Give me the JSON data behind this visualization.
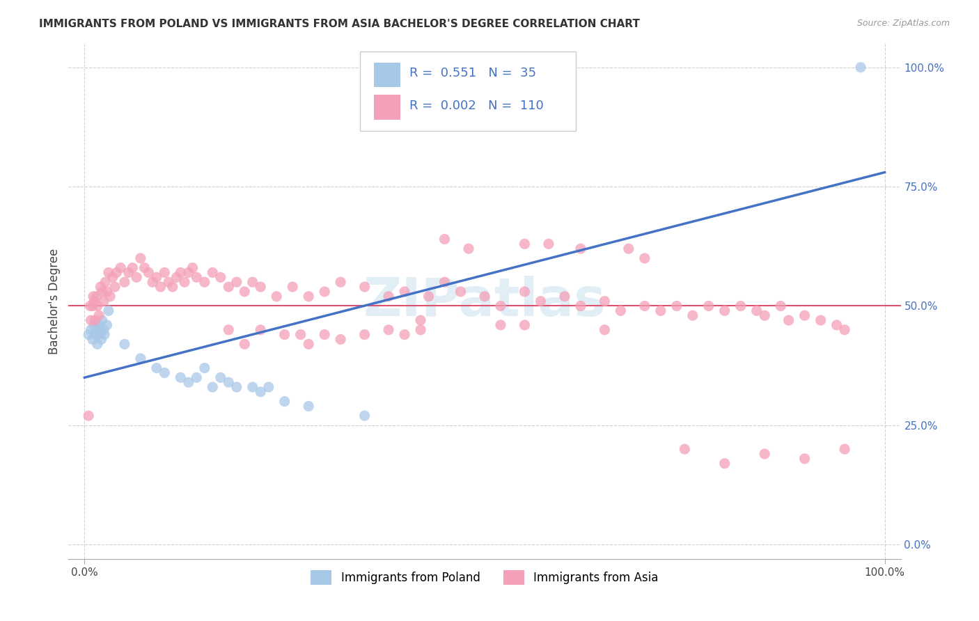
{
  "title": "IMMIGRANTS FROM POLAND VS IMMIGRANTS FROM ASIA BACHELOR'S DEGREE CORRELATION CHART",
  "source": "Source: ZipAtlas.com",
  "ylabel": "Bachelor's Degree",
  "legend_r_poland": "0.551",
  "legend_n_poland": "35",
  "legend_r_asia": "0.002",
  "legend_n_asia": "110",
  "color_poland": "#a8c8e8",
  "color_poland_line": "#4472c4",
  "color_asia": "#f4a0b8",
  "color_asia_line": "#e05070",
  "color_hline": "#e05070",
  "background_color": "#ffffff",
  "grid_color": "#cccccc",
  "watermark": "ZIPatlas",
  "poland_x": [
    0.5,
    0.8,
    1.0,
    1.2,
    1.3,
    1.5,
    1.6,
    1.7,
    1.8,
    2.0,
    2.1,
    2.2,
    2.4,
    2.5,
    2.8,
    3.0,
    5.0,
    7.0,
    9.0,
    10.0,
    12.0,
    13.0,
    14.0,
    15.0,
    16.0,
    17.0,
    18.0,
    19.0,
    21.0,
    22.0,
    23.0,
    25.0,
    28.0,
    35.0,
    97.0
  ],
  "poland_y": [
    44,
    45,
    43,
    46,
    44,
    45,
    42,
    44,
    46,
    45,
    43,
    47,
    45,
    44,
    46,
    49,
    42,
    39,
    37,
    36,
    35,
    34,
    35,
    37,
    33,
    35,
    34,
    33,
    33,
    32,
    33,
    30,
    29,
    27,
    100
  ],
  "asia_x": [
    0.5,
    0.7,
    0.8,
    1.0,
    1.1,
    1.2,
    1.3,
    1.5,
    1.6,
    1.8,
    2.0,
    2.2,
    2.4,
    2.6,
    2.8,
    3.0,
    3.2,
    3.5,
    3.8,
    4.0,
    4.5,
    5.0,
    5.5,
    6.0,
    6.5,
    7.0,
    7.5,
    8.0,
    8.5,
    9.0,
    9.5,
    10.0,
    10.5,
    11.0,
    11.5,
    12.0,
    12.5,
    13.0,
    13.5,
    14.0,
    15.0,
    16.0,
    17.0,
    18.0,
    19.0,
    20.0,
    21.0,
    22.0,
    24.0,
    26.0,
    28.0,
    30.0,
    32.0,
    35.0,
    38.0,
    40.0,
    43.0,
    45.0,
    47.0,
    50.0,
    52.0,
    55.0,
    57.0,
    60.0,
    62.0,
    65.0,
    67.0,
    70.0,
    72.0,
    74.0,
    76.0,
    78.0,
    80.0,
    82.0,
    84.0,
    85.0,
    87.0,
    88.0,
    90.0,
    92.0,
    94.0,
    95.0,
    62.0,
    65.0,
    68.0,
    70.0,
    52.0,
    55.0,
    40.0,
    42.0,
    30.0,
    35.0,
    22.0,
    27.0,
    18.0,
    75.0,
    80.0,
    85.0,
    90.0,
    95.0,
    55.0,
    58.0,
    48.0,
    45.0,
    38.0,
    42.0,
    28.0,
    32.0,
    20.0,
    25.0
  ],
  "asia_y": [
    27,
    50,
    47,
    50,
    52,
    51,
    47,
    52,
    50,
    48,
    54,
    53,
    51,
    55,
    53,
    57,
    52,
    56,
    54,
    57,
    58,
    55,
    57,
    58,
    56,
    60,
    58,
    57,
    55,
    56,
    54,
    57,
    55,
    54,
    56,
    57,
    55,
    57,
    58,
    56,
    55,
    57,
    56,
    54,
    55,
    53,
    55,
    54,
    52,
    54,
    52,
    53,
    55,
    54,
    52,
    53,
    52,
    55,
    53,
    52,
    50,
    53,
    51,
    52,
    50,
    51,
    49,
    50,
    49,
    50,
    48,
    50,
    49,
    50,
    49,
    48,
    50,
    47,
    48,
    47,
    46,
    45,
    62,
    45,
    62,
    60,
    46,
    46,
    44,
    45,
    44,
    44,
    45,
    44,
    45,
    20,
    17,
    19,
    18,
    20,
    63,
    63,
    62,
    64,
    45,
    47,
    42,
    43,
    42,
    44
  ],
  "poland_line_x": [
    0,
    100
  ],
  "poland_line_y": [
    35,
    78
  ],
  "asia_hline_y": 50,
  "xlim": [
    0,
    100
  ],
  "ylim": [
    0,
    100
  ],
  "ytick_positions": [
    0,
    25,
    50,
    75,
    100
  ],
  "ytick_labels": [
    "0.0%",
    "25.0%",
    "50.0%",
    "75.0%",
    "100.0%"
  ],
  "xtick_positions": [
    0,
    100
  ],
  "xtick_labels": [
    "0.0%",
    "100.0%"
  ],
  "title_fontsize": 11,
  "axis_fontsize": 11,
  "legend_fontsize": 13
}
